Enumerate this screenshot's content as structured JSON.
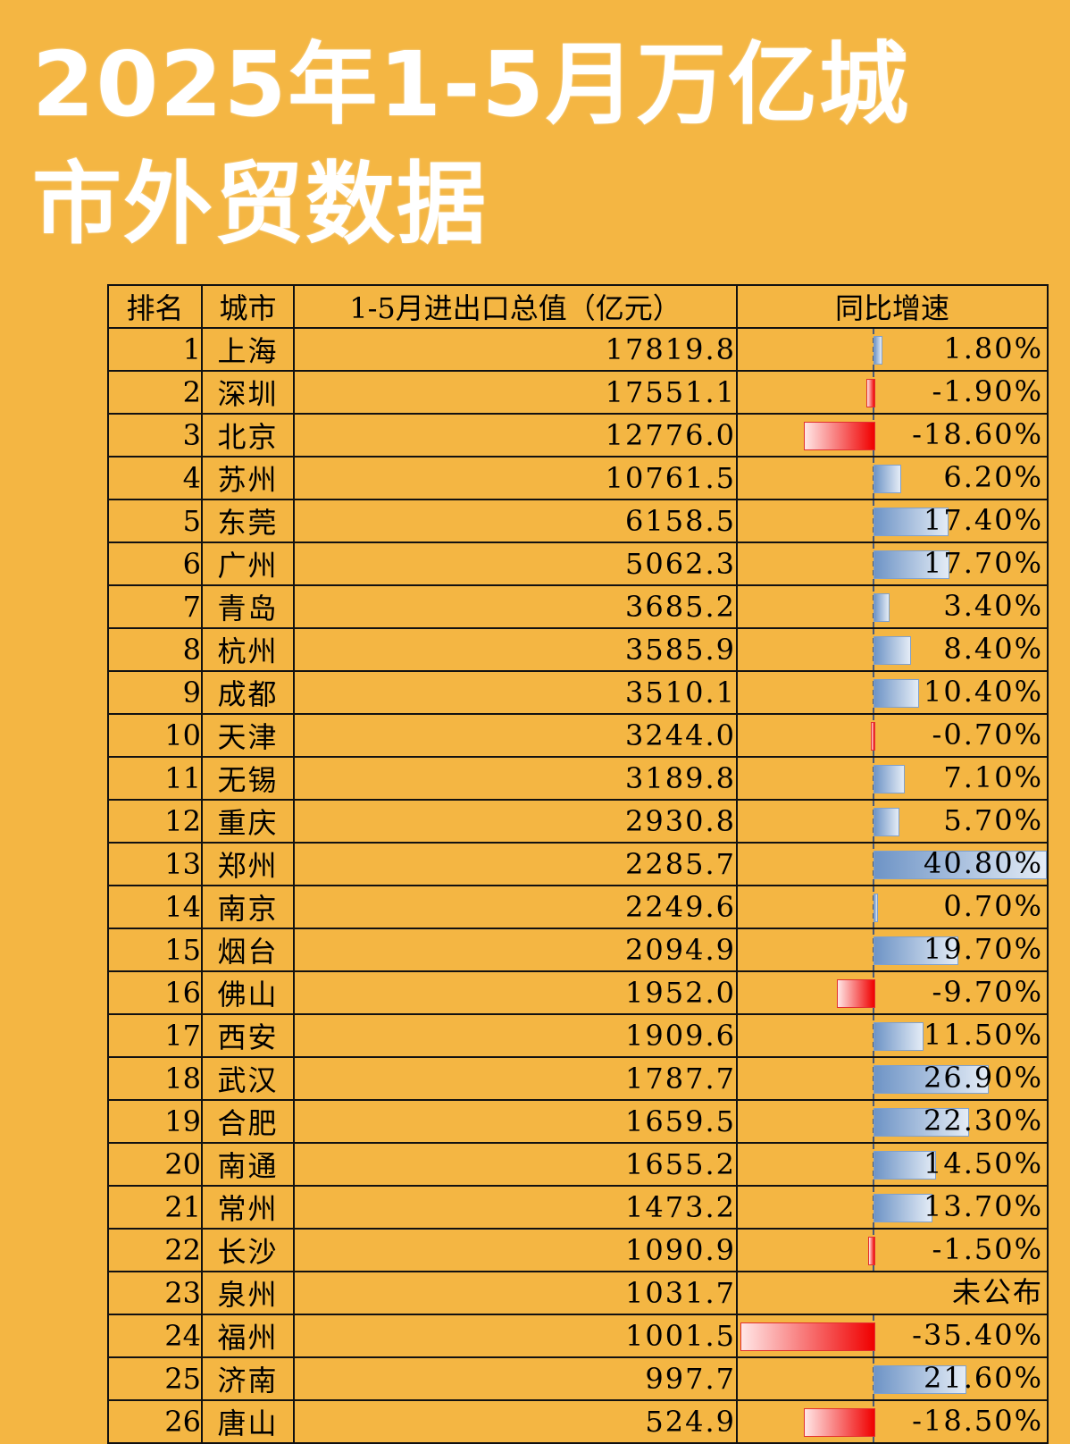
{
  "title": {
    "line1": "2025年1-5月万亿城",
    "line2": "市外贸数据"
  },
  "chart_data": {
    "type": "table",
    "headers": [
      "排名",
      "城市",
      "1-5月进出口总值（亿元）",
      "同比增速"
    ],
    "growth_axis": {
      "min": -35.4,
      "max": 40.8
    },
    "colors": {
      "positive_bar": "#6E94C6",
      "negative_bar": "#F00000"
    },
    "rows": [
      {
        "rank": "1",
        "city": "上海",
        "value": "17819.8",
        "growth": 1.8,
        "growth_label": "1.80%"
      },
      {
        "rank": "2",
        "city": "深圳",
        "value": "17551.1",
        "growth": -1.9,
        "growth_label": "-1.90%"
      },
      {
        "rank": "3",
        "city": "北京",
        "value": "12776.0",
        "growth": -18.6,
        "growth_label": "-18.60%"
      },
      {
        "rank": "4",
        "city": "苏州",
        "value": "10761.5",
        "growth": 6.2,
        "growth_label": "6.20%"
      },
      {
        "rank": "5",
        "city": "东莞",
        "value": "6158.5",
        "growth": 17.4,
        "growth_label": "17.40%"
      },
      {
        "rank": "6",
        "city": "广州",
        "value": "5062.3",
        "growth": 17.7,
        "growth_label": "17.70%"
      },
      {
        "rank": "7",
        "city": "青岛",
        "value": "3685.2",
        "growth": 3.4,
        "growth_label": "3.40%"
      },
      {
        "rank": "8",
        "city": "杭州",
        "value": "3585.9",
        "growth": 8.4,
        "growth_label": "8.40%"
      },
      {
        "rank": "9",
        "city": "成都",
        "value": "3510.1",
        "growth": 10.4,
        "growth_label": "10.40%"
      },
      {
        "rank": "10",
        "city": "天津",
        "value": "3244.0",
        "growth": -0.7,
        "growth_label": "-0.70%"
      },
      {
        "rank": "11",
        "city": "无锡",
        "value": "3189.8",
        "growth": 7.1,
        "growth_label": "7.10%"
      },
      {
        "rank": "12",
        "city": "重庆",
        "value": "2930.8",
        "growth": 5.7,
        "growth_label": "5.70%"
      },
      {
        "rank": "13",
        "city": "郑州",
        "value": "2285.7",
        "growth": 40.8,
        "growth_label": "40.80%"
      },
      {
        "rank": "14",
        "city": "南京",
        "value": "2249.6",
        "growth": 0.7,
        "growth_label": "0.70%"
      },
      {
        "rank": "15",
        "city": "烟台",
        "value": "2094.9",
        "growth": 19.7,
        "growth_label": "19.70%"
      },
      {
        "rank": "16",
        "city": "佛山",
        "value": "1952.0",
        "growth": -9.7,
        "growth_label": "-9.70%"
      },
      {
        "rank": "17",
        "city": "西安",
        "value": "1909.6",
        "growth": 11.5,
        "growth_label": "11.50%"
      },
      {
        "rank": "18",
        "city": "武汉",
        "value": "1787.7",
        "growth": 26.9,
        "growth_label": "26.90%"
      },
      {
        "rank": "19",
        "city": "合肥",
        "value": "1659.5",
        "growth": 22.3,
        "growth_label": "22.30%"
      },
      {
        "rank": "20",
        "city": "南通",
        "value": "1655.2",
        "growth": 14.5,
        "growth_label": "14.50%"
      },
      {
        "rank": "21",
        "city": "常州",
        "value": "1473.2",
        "growth": 13.7,
        "growth_label": "13.70%"
      },
      {
        "rank": "22",
        "city": "长沙",
        "value": "1090.9",
        "growth": -1.5,
        "growth_label": "-1.50%"
      },
      {
        "rank": "23",
        "city": "泉州",
        "value": "1031.7",
        "growth": null,
        "growth_label": "未公布"
      },
      {
        "rank": "24",
        "city": "福州",
        "value": "1001.5",
        "growth": -35.4,
        "growth_label": "-35.40%"
      },
      {
        "rank": "25",
        "city": "济南",
        "value": "997.7",
        "growth": 21.6,
        "growth_label": "21.60%"
      },
      {
        "rank": "26",
        "city": "唐山",
        "value": "524.9",
        "growth": -18.5,
        "growth_label": "-18.50%"
      }
    ]
  }
}
